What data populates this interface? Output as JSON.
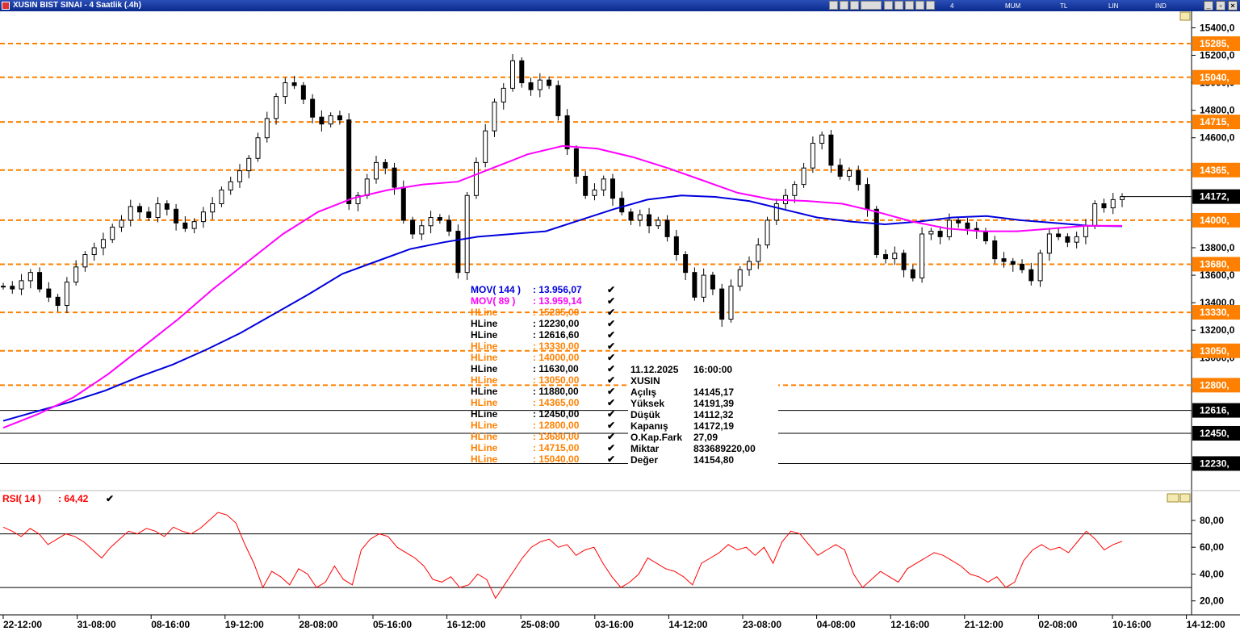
{
  "window": {
    "title": "XUSIN BIST SINAI - 4 Saatlik (.4h)",
    "toolbar": [
      "4 Saatlik",
      "MUM",
      "TL",
      "LIN",
      "IND"
    ]
  },
  "chart_data": [
    {
      "type": "candlestick",
      "symbol": "XUSIN",
      "x_tick_labels": [
        "22-12:00",
        "31-08:00",
        "08-16:00",
        "19-12:00",
        "28-08:00",
        "05-16:00",
        "16-12:00",
        "25-08:00",
        "03-16:00",
        "14-12:00",
        "23-08:00",
        "04-08:00",
        "12-16:00",
        "21-12:00",
        "02-08:00",
        "10-16:00",
        "14-12:00"
      ],
      "y_tick_labels": [
        "15400,0",
        "15200,0",
        "15000,0",
        "14800,0",
        "14600,0",
        "13800,0",
        "13600,0",
        "13400,0",
        "13200,0",
        "13000,0"
      ],
      "ylim": [
        12080,
        15520
      ],
      "close_series": [
        13520,
        13500,
        13560,
        13620,
        13500,
        13440,
        13380,
        13550,
        13660,
        13750,
        13800,
        13860,
        13950,
        14000,
        14100,
        14060,
        14020,
        14120,
        14080,
        13980,
        13940,
        13990,
        14060,
        14120,
        14220,
        14280,
        14360,
        14450,
        14600,
        14740,
        14900,
        15000,
        14980,
        14880,
        14750,
        14700,
        14760,
        14730,
        14120,
        14180,
        14300,
        14420,
        14380,
        14240,
        14000,
        13900,
        13960,
        14020,
        14000,
        13920,
        13620,
        14180,
        14420,
        14650,
        14860,
        14960,
        15160,
        15000,
        14950,
        15020,
        14980,
        14760,
        14520,
        14320,
        14180,
        14220,
        14300,
        14160,
        14060,
        14000,
        14040,
        13960,
        14000,
        13880,
        13750,
        13620,
        13440,
        13600,
        13500,
        13280,
        13520,
        13640,
        13700,
        13820,
        14000,
        14120,
        14180,
        14260,
        14380,
        14560,
        14620,
        14400,
        14320,
        14360,
        14260,
        14080,
        13750,
        13720,
        13760,
        13640,
        13580,
        13900,
        13920,
        13880,
        14000,
        13980,
        13940,
        13920,
        13850,
        13720,
        13700,
        13680,
        13640,
        13560,
        13760,
        13900,
        13880,
        13840,
        13880,
        13960,
        14120,
        14090,
        14150,
        14172
      ],
      "series": [
        {
          "name": "MOV( 144 )",
          "value_label": ": 13.956,07",
          "color": "#0000dd",
          "values": [
            12540,
            12610,
            12680,
            12760,
            12860,
            12950,
            13060,
            13180,
            13320,
            13460,
            13610,
            13700,
            13790,
            13840,
            13880,
            13900,
            13920,
            14000,
            14080,
            14150,
            14180,
            14170,
            14140,
            14080,
            14020,
            13990,
            13970,
            13990,
            14020,
            14030,
            14000,
            13980,
            13960,
            13956
          ]
        },
        {
          "name": "MOV( 89 )",
          "value_label": ": 13.959,14",
          "color": "#ff00ff",
          "values": [
            12490,
            12590,
            12710,
            12880,
            13080,
            13280,
            13500,
            13700,
            13900,
            14060,
            14160,
            14220,
            14260,
            14280,
            14380,
            14480,
            14540,
            14520,
            14460,
            14380,
            14290,
            14200,
            14150,
            14140,
            14120,
            14060,
            13990,
            13940,
            13920,
            13920,
            13940,
            13960,
            13959
          ]
        }
      ],
      "hlines": [
        {
          "label": "HLine",
          "value_label": ": 15285,00",
          "value": 15285,
          "axis_label": "15285,",
          "color": "#ff8000",
          "style": "dashed"
        },
        {
          "label": "HLine",
          "value_label": ": 12230,00",
          "value": 12230,
          "axis_label": "12230,",
          "color": "#000000",
          "style": "solid"
        },
        {
          "label": "HLine",
          "value_label": ": 12616,60",
          "value": 12616.6,
          "axis_label": "12616,",
          "color": "#000000",
          "style": "solid"
        },
        {
          "label": "HLine",
          "value_label": ": 13330,00",
          "value": 13330,
          "axis_label": "13330,",
          "color": "#ff8000",
          "style": "dashed"
        },
        {
          "label": "HLine",
          "value_label": ": 14000,00",
          "value": 14000,
          "axis_label": "14000,",
          "color": "#ff8000",
          "style": "dashed"
        },
        {
          "label": "HLine",
          "value_label": ": 11630,00",
          "value": 11630,
          "axis_label": "",
          "color": "#000000",
          "style": "solid"
        },
        {
          "label": "HLine",
          "value_label": ": 13050,00",
          "value": 13050,
          "axis_label": "13050,",
          "color": "#ff8000",
          "style": "dashed"
        },
        {
          "label": "HLine",
          "value_label": ": 11880,00",
          "value": 11880,
          "axis_label": "",
          "color": "#000000",
          "style": "solid"
        },
        {
          "label": "HLine",
          "value_label": ": 14365,00",
          "value": 14365,
          "axis_label": "14365,",
          "color": "#ff8000",
          "style": "dashed"
        },
        {
          "label": "HLine",
          "value_label": ": 12450,00",
          "value": 12450,
          "axis_label": "12450,",
          "color": "#000000",
          "style": "solid"
        },
        {
          "label": "HLine",
          "value_label": ": 12800,00",
          "value": 12800,
          "axis_label": "12800,",
          "color": "#ff8000",
          "style": "dashed"
        },
        {
          "label": "HLine",
          "value_label": ": 13680,00",
          "value": 13680,
          "axis_label": "13680,",
          "color": "#ff8000",
          "style": "dashed"
        },
        {
          "label": "HLine",
          "value_label": ": 14715,00",
          "value": 14715,
          "axis_label": "14715,",
          "color": "#ff8000",
          "style": "dashed"
        },
        {
          "label": "HLine",
          "value_label": ": 15040,00",
          "value": 15040,
          "axis_label": "15040,",
          "color": "#ff8000",
          "style": "dashed"
        }
      ],
      "last_price": {
        "value": 14172,
        "axis_label": "14172,"
      },
      "info_box": {
        "date": "11.12.2025",
        "time": "16:00:00",
        "symbol": "XUSIN",
        "rows": [
          {
            "label": "Açılış",
            "value": "14145,17"
          },
          {
            "label": "Yüksek",
            "value": "14191,39"
          },
          {
            "label": "Düşük",
            "value": "14112,32"
          },
          {
            "label": "Kapanış",
            "value": "14172,19"
          },
          {
            "label": "O.Kap.Fark",
            "value": "27,09"
          },
          {
            "label": "Miktar",
            "value": "833689220,00"
          },
          {
            "label": "Değer",
            "value": "14154,80"
          }
        ]
      }
    },
    {
      "type": "line",
      "title": "RSI( 14 )",
      "value_label": ": 64,42",
      "color": "#ff0000",
      "ylim": [
        12,
        92
      ],
      "levels": [
        70,
        30
      ],
      "y_tick_labels": [
        "80,00",
        "60,00",
        "40,00",
        "20,00"
      ],
      "values": [
        75,
        72,
        68,
        74,
        70,
        62,
        66,
        70,
        68,
        64,
        58,
        52,
        60,
        66,
        72,
        70,
        74,
        72,
        68,
        75,
        72,
        70,
        74,
        80,
        86,
        84,
        78,
        62,
        48,
        30,
        42,
        38,
        32,
        44,
        40,
        30,
        34,
        46,
        36,
        32,
        58,
        66,
        70,
        68,
        60,
        56,
        52,
        46,
        36,
        34,
        38,
        30,
        32,
        40,
        36,
        22,
        32,
        42,
        52,
        60,
        64,
        66,
        60,
        62,
        54,
        58,
        60,
        48,
        38,
        30,
        34,
        40,
        52,
        48,
        44,
        42,
        38,
        32,
        48,
        52,
        56,
        62,
        58,
        60,
        54,
        60,
        48,
        64,
        72,
        70,
        62,
        54,
        58,
        62,
        58,
        40,
        30,
        36,
        42,
        38,
        34,
        44,
        48,
        52,
        56,
        54,
        50,
        46,
        40,
        38,
        34,
        38,
        30,
        34,
        50,
        58,
        62,
        58,
        60,
        56,
        64,
        72,
        66,
        58,
        62,
        64.42
      ]
    }
  ]
}
